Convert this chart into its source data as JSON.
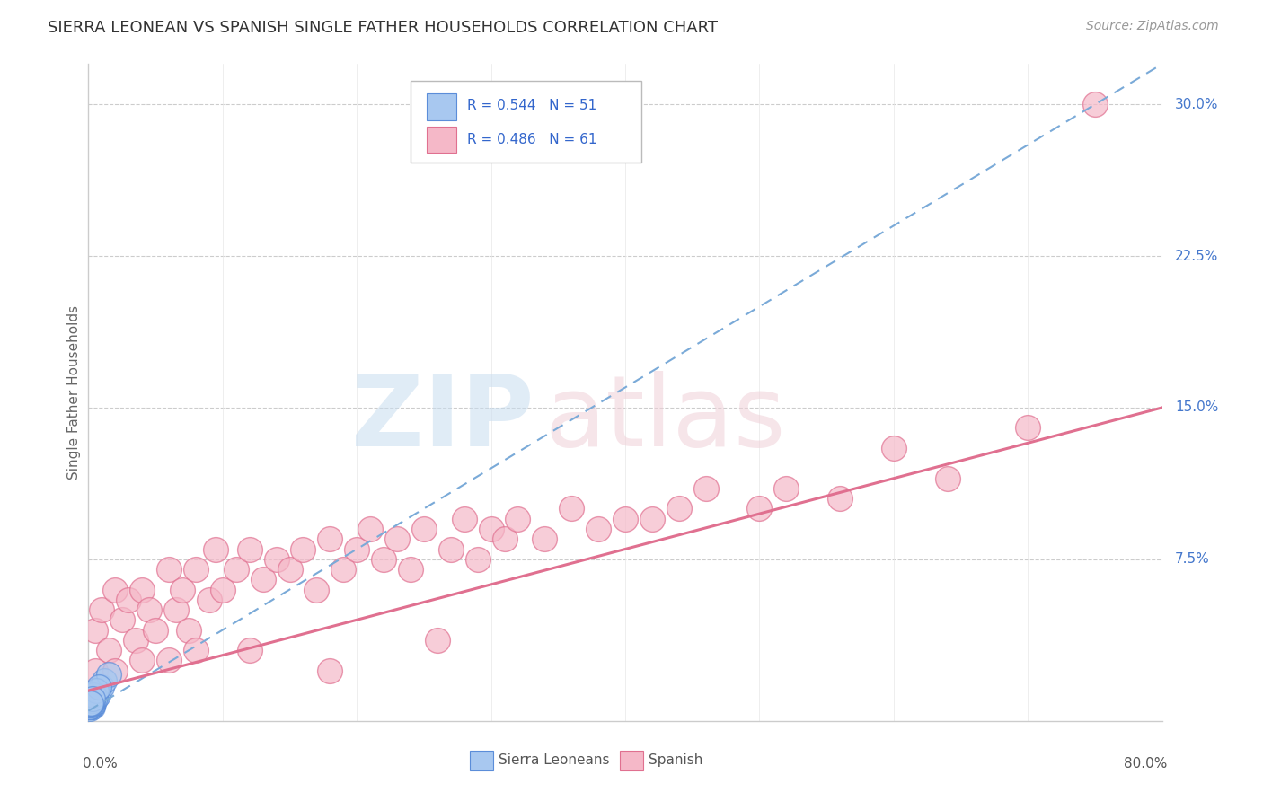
{
  "title": "SIERRA LEONEAN VS SPANISH SINGLE FATHER HOUSEHOLDS CORRELATION CHART",
  "source": "Source: ZipAtlas.com",
  "ylabel": "Single Father Households",
  "yticks": [
    0.0,
    0.075,
    0.15,
    0.225,
    0.3
  ],
  "ytick_labels": [
    "",
    "7.5%",
    "15.0%",
    "22.5%",
    "30.0%"
  ],
  "xlim": [
    0.0,
    0.8
  ],
  "ylim": [
    -0.005,
    0.32
  ],
  "sierra_r": "R = 0.544",
  "sierra_n": "N = 51",
  "spanish_r": "R = 0.486",
  "spanish_n": "N = 61",
  "blue_color": "#a8c8f0",
  "blue_edge": "#5b8dd9",
  "blue_line": "#7aaad8",
  "pink_color": "#f5b8c8",
  "pink_edge": "#e07090",
  "pink_line": "#e07090",
  "background_color": "#ffffff",
  "sierra_x": [
    0.001,
    0.001,
    0.002,
    0.001,
    0.003,
    0.002,
    0.004,
    0.003,
    0.002,
    0.001,
    0.001,
    0.002,
    0.003,
    0.002,
    0.001,
    0.001,
    0.002,
    0.001,
    0.003,
    0.001,
    0.002,
    0.001,
    0.001,
    0.002,
    0.001,
    0.002,
    0.003,
    0.002,
    0.001,
    0.001,
    0.002,
    0.003,
    0.004,
    0.003,
    0.005,
    0.004,
    0.006,
    0.005,
    0.007,
    0.008,
    0.01,
    0.012,
    0.015,
    0.005,
    0.003,
    0.002,
    0.004,
    0.006,
    0.008,
    0.003,
    0.002
  ],
  "sierra_y": [
    0.001,
    0.003,
    0.002,
    0.004,
    0.003,
    0.005,
    0.004,
    0.002,
    0.003,
    0.002,
    0.004,
    0.005,
    0.003,
    0.004,
    0.002,
    0.003,
    0.005,
    0.004,
    0.003,
    0.005,
    0.004,
    0.003,
    0.002,
    0.004,
    0.005,
    0.003,
    0.006,
    0.004,
    0.005,
    0.003,
    0.006,
    0.004,
    0.005,
    0.007,
    0.006,
    0.008,
    0.007,
    0.009,
    0.008,
    0.01,
    0.012,
    0.015,
    0.018,
    0.007,
    0.005,
    0.004,
    0.008,
    0.01,
    0.012,
    0.006,
    0.004
  ],
  "spanish_x": [
    0.005,
    0.01,
    0.015,
    0.02,
    0.025,
    0.03,
    0.035,
    0.04,
    0.045,
    0.05,
    0.06,
    0.065,
    0.07,
    0.075,
    0.08,
    0.09,
    0.095,
    0.1,
    0.11,
    0.12,
    0.13,
    0.14,
    0.15,
    0.16,
    0.17,
    0.18,
    0.19,
    0.2,
    0.21,
    0.22,
    0.23,
    0.24,
    0.25,
    0.27,
    0.28,
    0.29,
    0.3,
    0.31,
    0.32,
    0.34,
    0.36,
    0.38,
    0.4,
    0.42,
    0.44,
    0.46,
    0.5,
    0.52,
    0.56,
    0.6,
    0.64,
    0.7,
    0.005,
    0.02,
    0.04,
    0.06,
    0.08,
    0.12,
    0.18,
    0.26,
    0.75
  ],
  "spanish_y": [
    0.04,
    0.05,
    0.03,
    0.06,
    0.045,
    0.055,
    0.035,
    0.06,
    0.05,
    0.04,
    0.07,
    0.05,
    0.06,
    0.04,
    0.07,
    0.055,
    0.08,
    0.06,
    0.07,
    0.08,
    0.065,
    0.075,
    0.07,
    0.08,
    0.06,
    0.085,
    0.07,
    0.08,
    0.09,
    0.075,
    0.085,
    0.07,
    0.09,
    0.08,
    0.095,
    0.075,
    0.09,
    0.085,
    0.095,
    0.085,
    0.1,
    0.09,
    0.095,
    0.095,
    0.1,
    0.11,
    0.1,
    0.11,
    0.105,
    0.13,
    0.115,
    0.14,
    0.02,
    0.02,
    0.025,
    0.025,
    0.03,
    0.03,
    0.02,
    0.035,
    0.3
  ]
}
